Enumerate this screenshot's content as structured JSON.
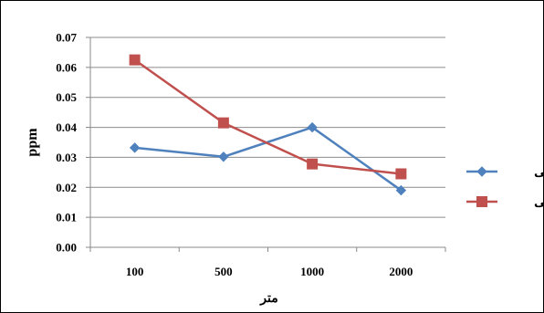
{
  "chart_data": {
    "type": "line",
    "categories": [
      "100",
      "500",
      "1000",
      "2000"
    ],
    "series": [
      {
        "name": "جنوبی",
        "values": [
          0.0332,
          0.0302,
          0.04,
          0.019
        ],
        "color": "#4F81BD",
        "marker": "diamond"
      },
      {
        "name": "شرقی",
        "values": [
          0.0625,
          0.0415,
          0.0278,
          0.0245
        ],
        "color": "#C0504D",
        "marker": "square"
      }
    ],
    "title": "",
    "xlabel": "متر",
    "ylabel": "ppm",
    "ylim": [
      0,
      0.07
    ],
    "yticks": [
      "0.00",
      "0.01",
      "0.02",
      "0.03",
      "0.04",
      "0.05",
      "0.06",
      "0.07"
    ],
    "grid": true,
    "legend_position": "right"
  }
}
